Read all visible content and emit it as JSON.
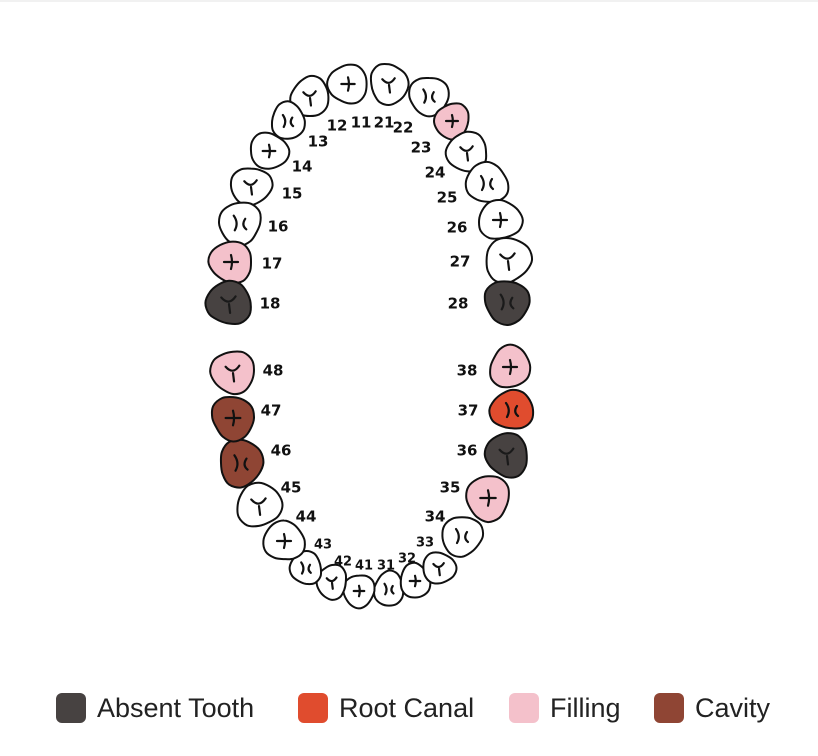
{
  "chart": {
    "type": "dental-chart",
    "colors": {
      "healthy": "#ffffff",
      "absent": "#474241",
      "root_canal": "#e04c2e",
      "filling": "#f4c1cb",
      "cavity": "#8f4534",
      "outline": "#111111"
    },
    "teeth": [
      {
        "id": "11",
        "status": "healthy"
      },
      {
        "id": "12",
        "status": "healthy"
      },
      {
        "id": "13",
        "status": "healthy"
      },
      {
        "id": "14",
        "status": "healthy"
      },
      {
        "id": "15",
        "status": "healthy"
      },
      {
        "id": "16",
        "status": "healthy"
      },
      {
        "id": "17",
        "status": "filling"
      },
      {
        "id": "18",
        "status": "absent"
      },
      {
        "id": "21",
        "status": "healthy"
      },
      {
        "id": "22",
        "status": "healthy"
      },
      {
        "id": "23",
        "status": "filling"
      },
      {
        "id": "24",
        "status": "healthy"
      },
      {
        "id": "25",
        "status": "healthy"
      },
      {
        "id": "26",
        "status": "healthy"
      },
      {
        "id": "27",
        "status": "healthy"
      },
      {
        "id": "28",
        "status": "absent"
      },
      {
        "id": "31",
        "status": "healthy"
      },
      {
        "id": "32",
        "status": "healthy"
      },
      {
        "id": "33",
        "status": "healthy"
      },
      {
        "id": "34",
        "status": "healthy"
      },
      {
        "id": "35",
        "status": "filling"
      },
      {
        "id": "36",
        "status": "absent"
      },
      {
        "id": "37",
        "status": "root_canal"
      },
      {
        "id": "38",
        "status": "filling"
      },
      {
        "id": "41",
        "status": "healthy"
      },
      {
        "id": "42",
        "status": "healthy"
      },
      {
        "id": "43",
        "status": "healthy"
      },
      {
        "id": "44",
        "status": "healthy"
      },
      {
        "id": "45",
        "status": "healthy"
      },
      {
        "id": "46",
        "status": "cavity"
      },
      {
        "id": "47",
        "status": "cavity"
      },
      {
        "id": "48",
        "status": "filling"
      }
    ]
  },
  "legend": [
    {
      "label": "Absent Tooth",
      "status": "absent"
    },
    {
      "label": "Root Canal",
      "status": "root_canal"
    },
    {
      "label": "Filling",
      "status": "filling"
    },
    {
      "label": "Cavity",
      "status": "cavity"
    }
  ]
}
